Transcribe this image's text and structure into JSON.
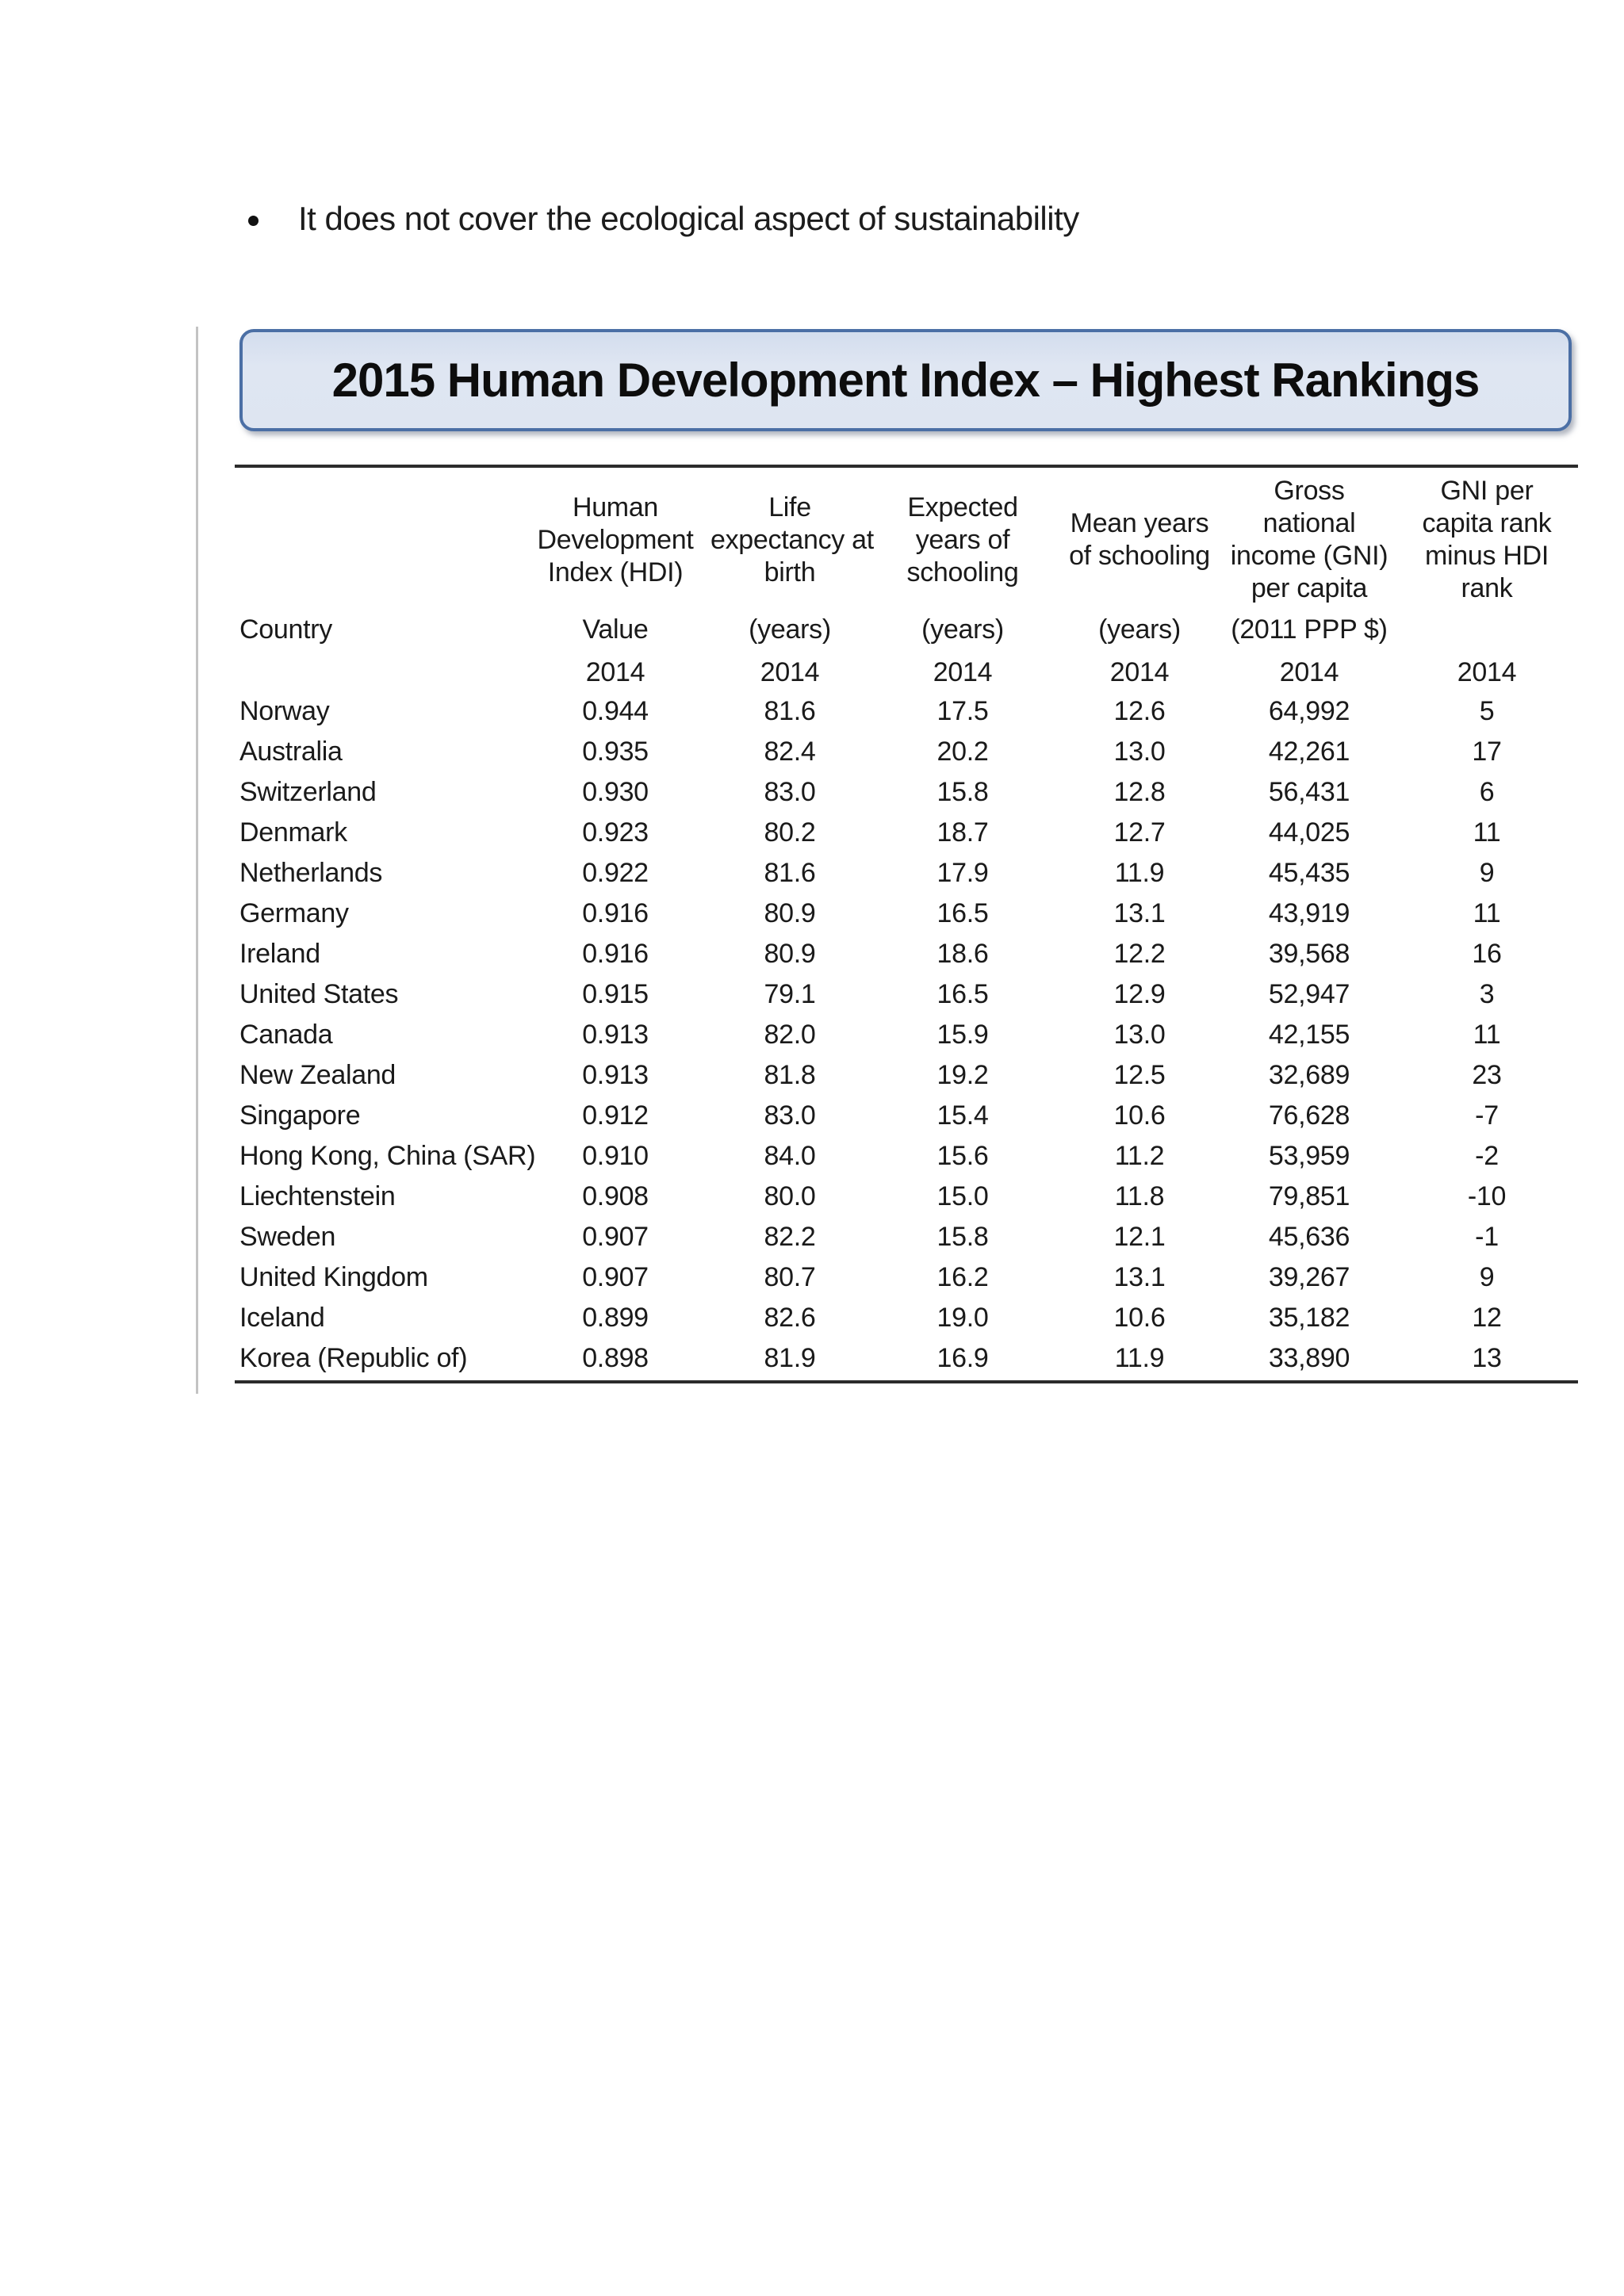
{
  "page": {
    "bullet_text": "It does not cover the ecological aspect of sustainability"
  },
  "figure": {
    "title": "2015 Human Development Index – Highest Rankings",
    "colors": {
      "banner_fill": "#dee5f1",
      "banner_border": "#4b6fa5",
      "rule": "#2b2b2b",
      "side_line": "#c3c3c3",
      "text": "#1a1a1a"
    },
    "table": {
      "columns": [
        {
          "id": "country",
          "header": "",
          "unit": "Country",
          "year": ""
        },
        {
          "id": "hdi",
          "header": "Human\nDevelopment\nIndex (HDI)",
          "unit": "Value",
          "year": "2014"
        },
        {
          "id": "life_expectancy",
          "header": "Life\nexpectancy at\nbirth",
          "unit": "(years)",
          "year": "2014"
        },
        {
          "id": "expected_schooling",
          "header": "Expected\nyears of\nschooling",
          "unit": "(years)",
          "year": "2014"
        },
        {
          "id": "mean_schooling",
          "header": "Mean years\nof schooling",
          "unit": "(years)",
          "year": "2014"
        },
        {
          "id": "gni_per_capita",
          "header": "Gross\nnational\nincome (GNI)\nper capita",
          "unit": "(2011 PPP $)",
          "year": "2014"
        },
        {
          "id": "gni_rank_minus_hdi",
          "header": "GNI per\ncapita rank\nminus HDI\nrank",
          "unit": "",
          "year": "2014"
        }
      ],
      "rows": [
        [
          "Norway",
          "0.944",
          "81.6",
          "17.5",
          "12.6",
          "64,992",
          "5"
        ],
        [
          "Australia",
          "0.935",
          "82.4",
          "20.2",
          "13.0",
          "42,261",
          "17"
        ],
        [
          "Switzerland",
          "0.930",
          "83.0",
          "15.8",
          "12.8",
          "56,431",
          "6"
        ],
        [
          "Denmark",
          "0.923",
          "80.2",
          "18.7",
          "12.7",
          "44,025",
          "11"
        ],
        [
          "Netherlands",
          "0.922",
          "81.6",
          "17.9",
          "11.9",
          "45,435",
          "9"
        ],
        [
          "Germany",
          "0.916",
          "80.9",
          "16.5",
          "13.1",
          "43,919",
          "11"
        ],
        [
          "Ireland",
          "0.916",
          "80.9",
          "18.6",
          "12.2",
          "39,568",
          "16"
        ],
        [
          "United States",
          "0.915",
          "79.1",
          "16.5",
          "12.9",
          "52,947",
          "3"
        ],
        [
          "Canada",
          "0.913",
          "82.0",
          "15.9",
          "13.0",
          "42,155",
          "11"
        ],
        [
          "New Zealand",
          "0.913",
          "81.8",
          "19.2",
          "12.5",
          "32,689",
          "23"
        ],
        [
          "Singapore",
          "0.912",
          "83.0",
          "15.4",
          "10.6",
          "76,628",
          "-7"
        ],
        [
          "Hong Kong, China (SAR)",
          "0.910",
          "84.0",
          "15.6",
          "11.2",
          "53,959",
          "-2"
        ],
        [
          "Liechtenstein",
          "0.908",
          "80.0",
          "15.0",
          "11.8",
          "79,851",
          "-10"
        ],
        [
          "Sweden",
          "0.907",
          "82.2",
          "15.8",
          "12.1",
          "45,636",
          "-1"
        ],
        [
          "United Kingdom",
          "0.907",
          "80.7",
          "16.2",
          "13.1",
          "39,267",
          "9"
        ],
        [
          "Iceland",
          "0.899",
          "82.6",
          "19.0",
          "10.6",
          "35,182",
          "12"
        ],
        [
          "Korea (Republic of)",
          "0.898",
          "81.9",
          "16.9",
          "11.9",
          "33,890",
          "13"
        ]
      ]
    }
  }
}
